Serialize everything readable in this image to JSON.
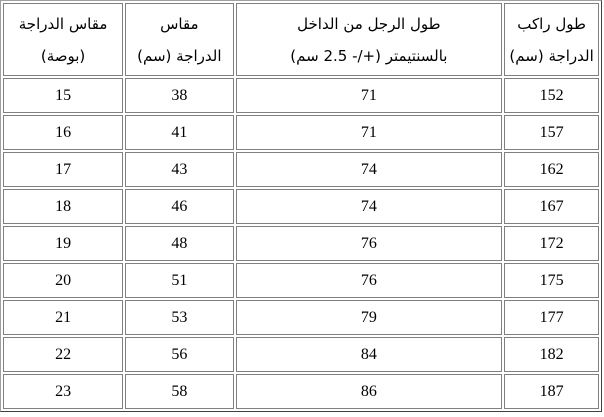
{
  "table": {
    "headers": [
      [
        "طول راكب",
        "الدراجة (سم)"
      ],
      [
        "طول الرجل من الداخل",
        "بالسنتيمتر (+/- 2.5 سم)"
      ],
      [
        "مقاس",
        "الدراجة (سم)"
      ],
      [
        "مقاس الدراجة",
        "(بوصة)"
      ]
    ],
    "rows": [
      [
        "152",
        "71",
        "38",
        "15"
      ],
      [
        "157",
        "71",
        "41",
        "16"
      ],
      [
        "162",
        "74",
        "43",
        "17"
      ],
      [
        "167",
        "74",
        "46",
        "18"
      ],
      [
        "172",
        "76",
        "48",
        "19"
      ],
      [
        "175",
        "76",
        "51",
        "20"
      ],
      [
        "177",
        "79",
        "53",
        "21"
      ],
      [
        "182",
        "84",
        "56",
        "22"
      ],
      [
        "187",
        "86",
        "58",
        "23"
      ]
    ]
  }
}
